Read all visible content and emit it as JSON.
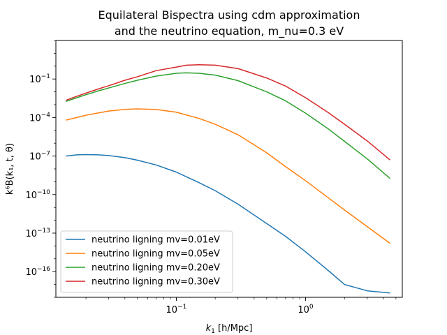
{
  "chart_data": {
    "type": "line",
    "title_line1": "Equilateral Bispectra using cdm approximation",
    "title_line2": "and the neutrino equation, m_nu=0.3 eV",
    "xlabel_prefix": "k",
    "xlabel_sub": "1",
    "xlabel_suffix": " [h/Mpc]",
    "ylabel": "k⁶B(k₁, t, θ)",
    "xscale": "log",
    "yscale": "log",
    "xlim": [
      0.0117,
      5.6
    ],
    "ylim": [
      1e-18,
      100.0
    ],
    "grid": false,
    "legend_position": "lower-left",
    "x_ticks": [
      {
        "value": 0.1,
        "base": "10",
        "exp": "−1"
      },
      {
        "value": 1,
        "base": "10",
        "exp": "0"
      }
    ],
    "y_ticks": [
      {
        "value": 1e-16,
        "base": "10",
        "exp": "−16"
      },
      {
        "value": 1e-13,
        "base": "10",
        "exp": "−13"
      },
      {
        "value": 1e-10,
        "base": "10",
        "exp": "−10"
      },
      {
        "value": 1e-07,
        "base": "10",
        "exp": "−7"
      },
      {
        "value": 0.0001,
        "base": "10",
        "exp": "−4"
      },
      {
        "value": 0.1,
        "base": "10",
        "exp": "−1"
      }
    ],
    "series": [
      {
        "name": "neutrino ligning mv=0.01eV",
        "color": "#1f77b4",
        "x": [
          0.014,
          0.017,
          0.02,
          0.025,
          0.03,
          0.04,
          0.05,
          0.07,
          0.1,
          0.15,
          0.2,
          0.3,
          0.5,
          0.7,
          1.0,
          1.5,
          2.0,
          3.0,
          4.5
        ],
        "y": [
          1e-07,
          1.25e-07,
          1.3e-07,
          1.25e-07,
          1.1e-07,
          7.5e-08,
          4.8e-08,
          2e-08,
          5.6e-09,
          8.5e-10,
          2e-10,
          1.8e-11,
          5.6e-13,
          5.6e-14,
          3.5e-15,
          1.2e-16,
          1e-17,
          3.2e-18,
          2.2e-18
        ]
      },
      {
        "name": "neutrino ligning mv=0.05eV",
        "color": "#ff7f0e",
        "x": [
          0.014,
          0.017,
          0.02,
          0.025,
          0.03,
          0.04,
          0.05,
          0.07,
          0.1,
          0.15,
          0.2,
          0.3,
          0.5,
          0.7,
          1.0,
          1.5,
          2.0,
          3.0,
          4.5
        ],
        "y": [
          6.3e-05,
          0.0001,
          0.00015,
          0.00023,
          0.00032,
          0.00043,
          0.00047,
          0.00042,
          0.00026,
          8.5e-05,
          3e-05,
          4.6e-06,
          1.8e-07,
          1.5e-08,
          1.2e-09,
          5.6e-11,
          6.3e-12,
          3.2e-13,
          1.6e-14
        ]
      },
      {
        "name": "neutrino ligning mv=0.20eV",
        "color": "#2ca02c",
        "x": [
          0.014,
          0.017,
          0.02,
          0.025,
          0.03,
          0.04,
          0.05,
          0.07,
          0.1,
          0.12,
          0.15,
          0.2,
          0.3,
          0.5,
          0.7,
          1.0,
          1.5,
          2.0,
          3.0,
          4.5
        ],
        "y": [
          0.0018,
          0.0035,
          0.006,
          0.012,
          0.02,
          0.045,
          0.08,
          0.17,
          0.28,
          0.3,
          0.28,
          0.2,
          0.075,
          0.01,
          0.002,
          0.00022,
          1.3e-05,
          1.4e-06,
          6e-08,
          1.8e-09
        ]
      },
      {
        "name": "neutrino ligning mv=0.30eV",
        "color": "#d62728",
        "x": [
          0.014,
          0.017,
          0.02,
          0.025,
          0.03,
          0.04,
          0.05,
          0.07,
          0.1,
          0.12,
          0.15,
          0.2,
          0.3,
          0.5,
          0.7,
          1.0,
          1.5,
          2.0,
          3.0,
          4.5
        ],
        "y": [
          0.0022,
          0.0045,
          0.008,
          0.017,
          0.03,
          0.08,
          0.15,
          0.45,
          0.85,
          1.2,
          1.3,
          1.2,
          0.65,
          0.12,
          0.028,
          0.0035,
          0.00024,
          3e-05,
          1.5e-06,
          5e-08
        ]
      }
    ]
  }
}
